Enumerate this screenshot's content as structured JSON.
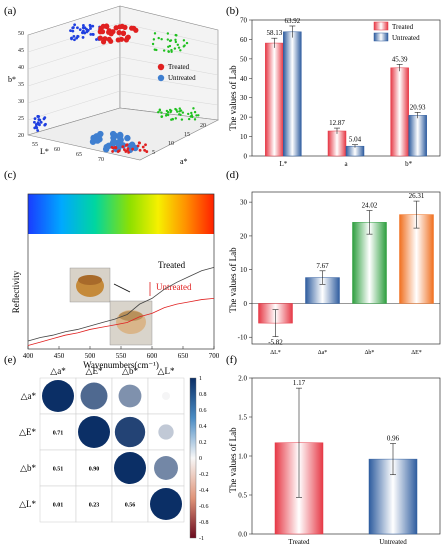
{
  "panel_labels": [
    "(a)",
    "(b)",
    "(c)",
    "(d)",
    "(e)",
    "(f)"
  ],
  "colors": {
    "treated": "#e0404a",
    "untreated": "#3f6fb5",
    "green": "#39b54a",
    "orange": "#f08030",
    "curve_treated": "#444444",
    "curve_untreated": "#e02020"
  },
  "chart_data": [
    {
      "panel": "(a)",
      "type": "scatter",
      "description_3d": true,
      "axis_labels": {
        "x": "L*",
        "y": "a*",
        "z": "b*"
      },
      "z_ticks": [
        "20",
        "25",
        "30",
        "35",
        "40",
        "45",
        "50"
      ],
      "x_ticks": [
        "55",
        "60",
        "65",
        "70"
      ],
      "y_ticks": [
        "5",
        "10",
        "15",
        "20"
      ],
      "legend": [
        "Treated",
        "Untreated"
      ]
    },
    {
      "panel": "(b)",
      "type": "bar",
      "ylabel": "The values of Lab",
      "categories": [
        "L*",
        "a",
        "b*"
      ],
      "legend": [
        "Treated",
        "Untreated"
      ],
      "series": [
        {
          "name": "Treated",
          "values": [
            58.13,
            12.87,
            45.39
          ],
          "errors": [
            2.5,
            1.5,
            1.8
          ]
        },
        {
          "name": "Untreated",
          "values": [
            63.92,
            5.04,
            20.93
          ],
          "errors": [
            3.0,
            0.8,
            1.5
          ]
        }
      ],
      "value_labels": [
        [
          "58.13",
          "12.87",
          "45.39"
        ],
        [
          "63.92",
          "5.04",
          "20.93"
        ]
      ],
      "yticks": [
        "0",
        "10",
        "20",
        "30",
        "40",
        "50",
        "60",
        "70"
      ],
      "ylim": [
        0,
        70
      ]
    },
    {
      "panel": "(c)",
      "type": "line",
      "xlabel": "Wavenumbers(cm⁻¹)",
      "ylabel": "Reflectivity",
      "xticks": [
        "400",
        "450",
        "500",
        "550",
        "600",
        "650",
        "700"
      ],
      "xlim": [
        400,
        700
      ],
      "series": [
        {
          "name": "Treated",
          "x": [
            400,
            420,
            440,
            460,
            480,
            500,
            520,
            540,
            560,
            580,
            600,
            620,
            640,
            660,
            680,
            700
          ],
          "y": [
            0.07,
            0.1,
            0.12,
            0.15,
            0.17,
            0.2,
            0.23,
            0.26,
            0.3,
            0.39,
            0.44,
            0.52,
            0.58,
            0.63,
            0.68,
            0.71
          ]
        },
        {
          "name": "Untreated",
          "x": [
            400,
            420,
            440,
            460,
            480,
            500,
            520,
            540,
            560,
            580,
            600,
            620,
            640,
            660,
            680,
            700
          ],
          "y": [
            0.03,
            0.06,
            0.09,
            0.12,
            0.14,
            0.17,
            0.19,
            0.21,
            0.23,
            0.28,
            0.31,
            0.36,
            0.39,
            0.41,
            0.43,
            0.44
          ]
        }
      ]
    },
    {
      "panel": "(d)",
      "type": "bar",
      "ylabel": "The values of Lab",
      "categories": [
        "ΔL*",
        "Δa*",
        "Δb*",
        "ΔE*"
      ],
      "values": [
        -5.82,
        7.67,
        24.02,
        26.31
      ],
      "errors": [
        4.0,
        2.0,
        3.5,
        4.0
      ],
      "value_labels": [
        "-5.82",
        "7.67",
        "24.02",
        "26.31"
      ],
      "yticks": [
        "-10",
        "0",
        "10",
        "20",
        "30"
      ],
      "ylim": [
        -12,
        33
      ]
    },
    {
      "panel": "(e)",
      "type": "heatmap",
      "labels": [
        "△a*",
        "△E*",
        "△b*",
        "△L*"
      ],
      "matrix": [
        [
          1.0,
          0.71,
          0.51,
          0.01
        ],
        [
          0.71,
          1.0,
          0.9,
          0.23
        ],
        [
          0.51,
          0.9,
          1.0,
          0.56
        ],
        [
          0.01,
          0.23,
          0.56,
          1.0
        ]
      ],
      "lower_labels": [
        [
          "",
          "",
          "",
          ""
        ],
        [
          "0.71",
          "",
          "",
          ""
        ],
        [
          "0.51",
          "0.90",
          "",
          ""
        ],
        [
          "0.01",
          "0.23",
          "0.56",
          ""
        ]
      ],
      "colorbar_ticks": [
        "1",
        "0.8",
        "0.6",
        "0.4",
        "0.2",
        "0",
        "-0.2",
        "-0.4",
        "-0.6",
        "-0.8",
        "-1"
      ]
    },
    {
      "panel": "(f)",
      "type": "bar",
      "ylabel": "The values of Lab",
      "categories": [
        "Treated",
        "Untreated"
      ],
      "values": [
        1.17,
        0.96
      ],
      "errors": [
        0.7,
        0.2
      ],
      "value_labels": [
        "1.17",
        "0.96"
      ],
      "yticks": [
        "0.0",
        "0.5",
        "1.0",
        "1.5",
        "2.0"
      ],
      "ylim": [
        0,
        2.0
      ]
    }
  ],
  "figure_c_labels": {
    "treated": "Treated",
    "untreated": "Untreated"
  }
}
